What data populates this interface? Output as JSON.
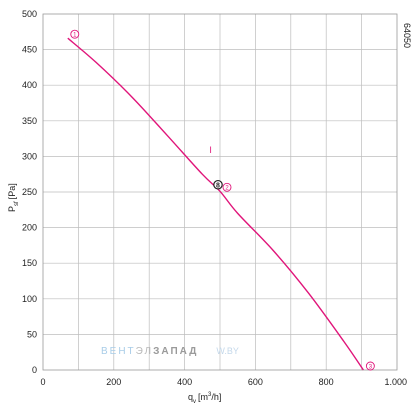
{
  "chart_data": {
    "type": "line",
    "xlabel_base": "q",
    "xlabel_sub": "v",
    "xlabel_unit_pre": "[m",
    "xlabel_unit_sup": "3",
    "xlabel_unit_post": "/h]",
    "ylabel_base": "P",
    "ylabel_sub": "sf",
    "ylabel_unit": "[Pa]",
    "xlim": [
      0,
      1000
    ],
    "ylim": [
      0,
      500
    ],
    "x_ticks": [
      0,
      200,
      400,
      600,
      800,
      1000
    ],
    "x_tick_labels": [
      "0",
      "200",
      "400",
      "600",
      "800",
      "1.000"
    ],
    "y_ticks": [
      0,
      50,
      100,
      150,
      200,
      250,
      300,
      350,
      400,
      450,
      500
    ],
    "y_tick_labels": [
      "0",
      "50",
      "100",
      "150",
      "200",
      "250",
      "300",
      "350",
      "400",
      "450",
      "500"
    ],
    "x_grid_step": 100,
    "grid": true,
    "model_code": "64050",
    "curve_label": "I",
    "series": [
      {
        "color": "#e0157a",
        "x": [
          70,
          150,
          250,
          350,
          450,
          500,
          550,
          650,
          750,
          850,
          905
        ],
        "y": [
          466,
          432,
          384,
          330,
          275,
          251,
          220,
          168,
          108,
          40,
          0
        ]
      }
    ],
    "markers": [
      {
        "label": "1",
        "x": 70,
        "y": 466
      },
      {
        "label": "2",
        "x": 500,
        "y": 251
      },
      {
        "label": "3",
        "x": 905,
        "y": 0
      }
    ],
    "operating_point": {
      "label": "8",
      "x": 500,
      "y": 270
    }
  },
  "watermark": {
    "part1": "ВЕНТ",
    "part2": "ЭЛ",
    "part3": "ЗАПАД",
    "part4": "W.BY"
  }
}
